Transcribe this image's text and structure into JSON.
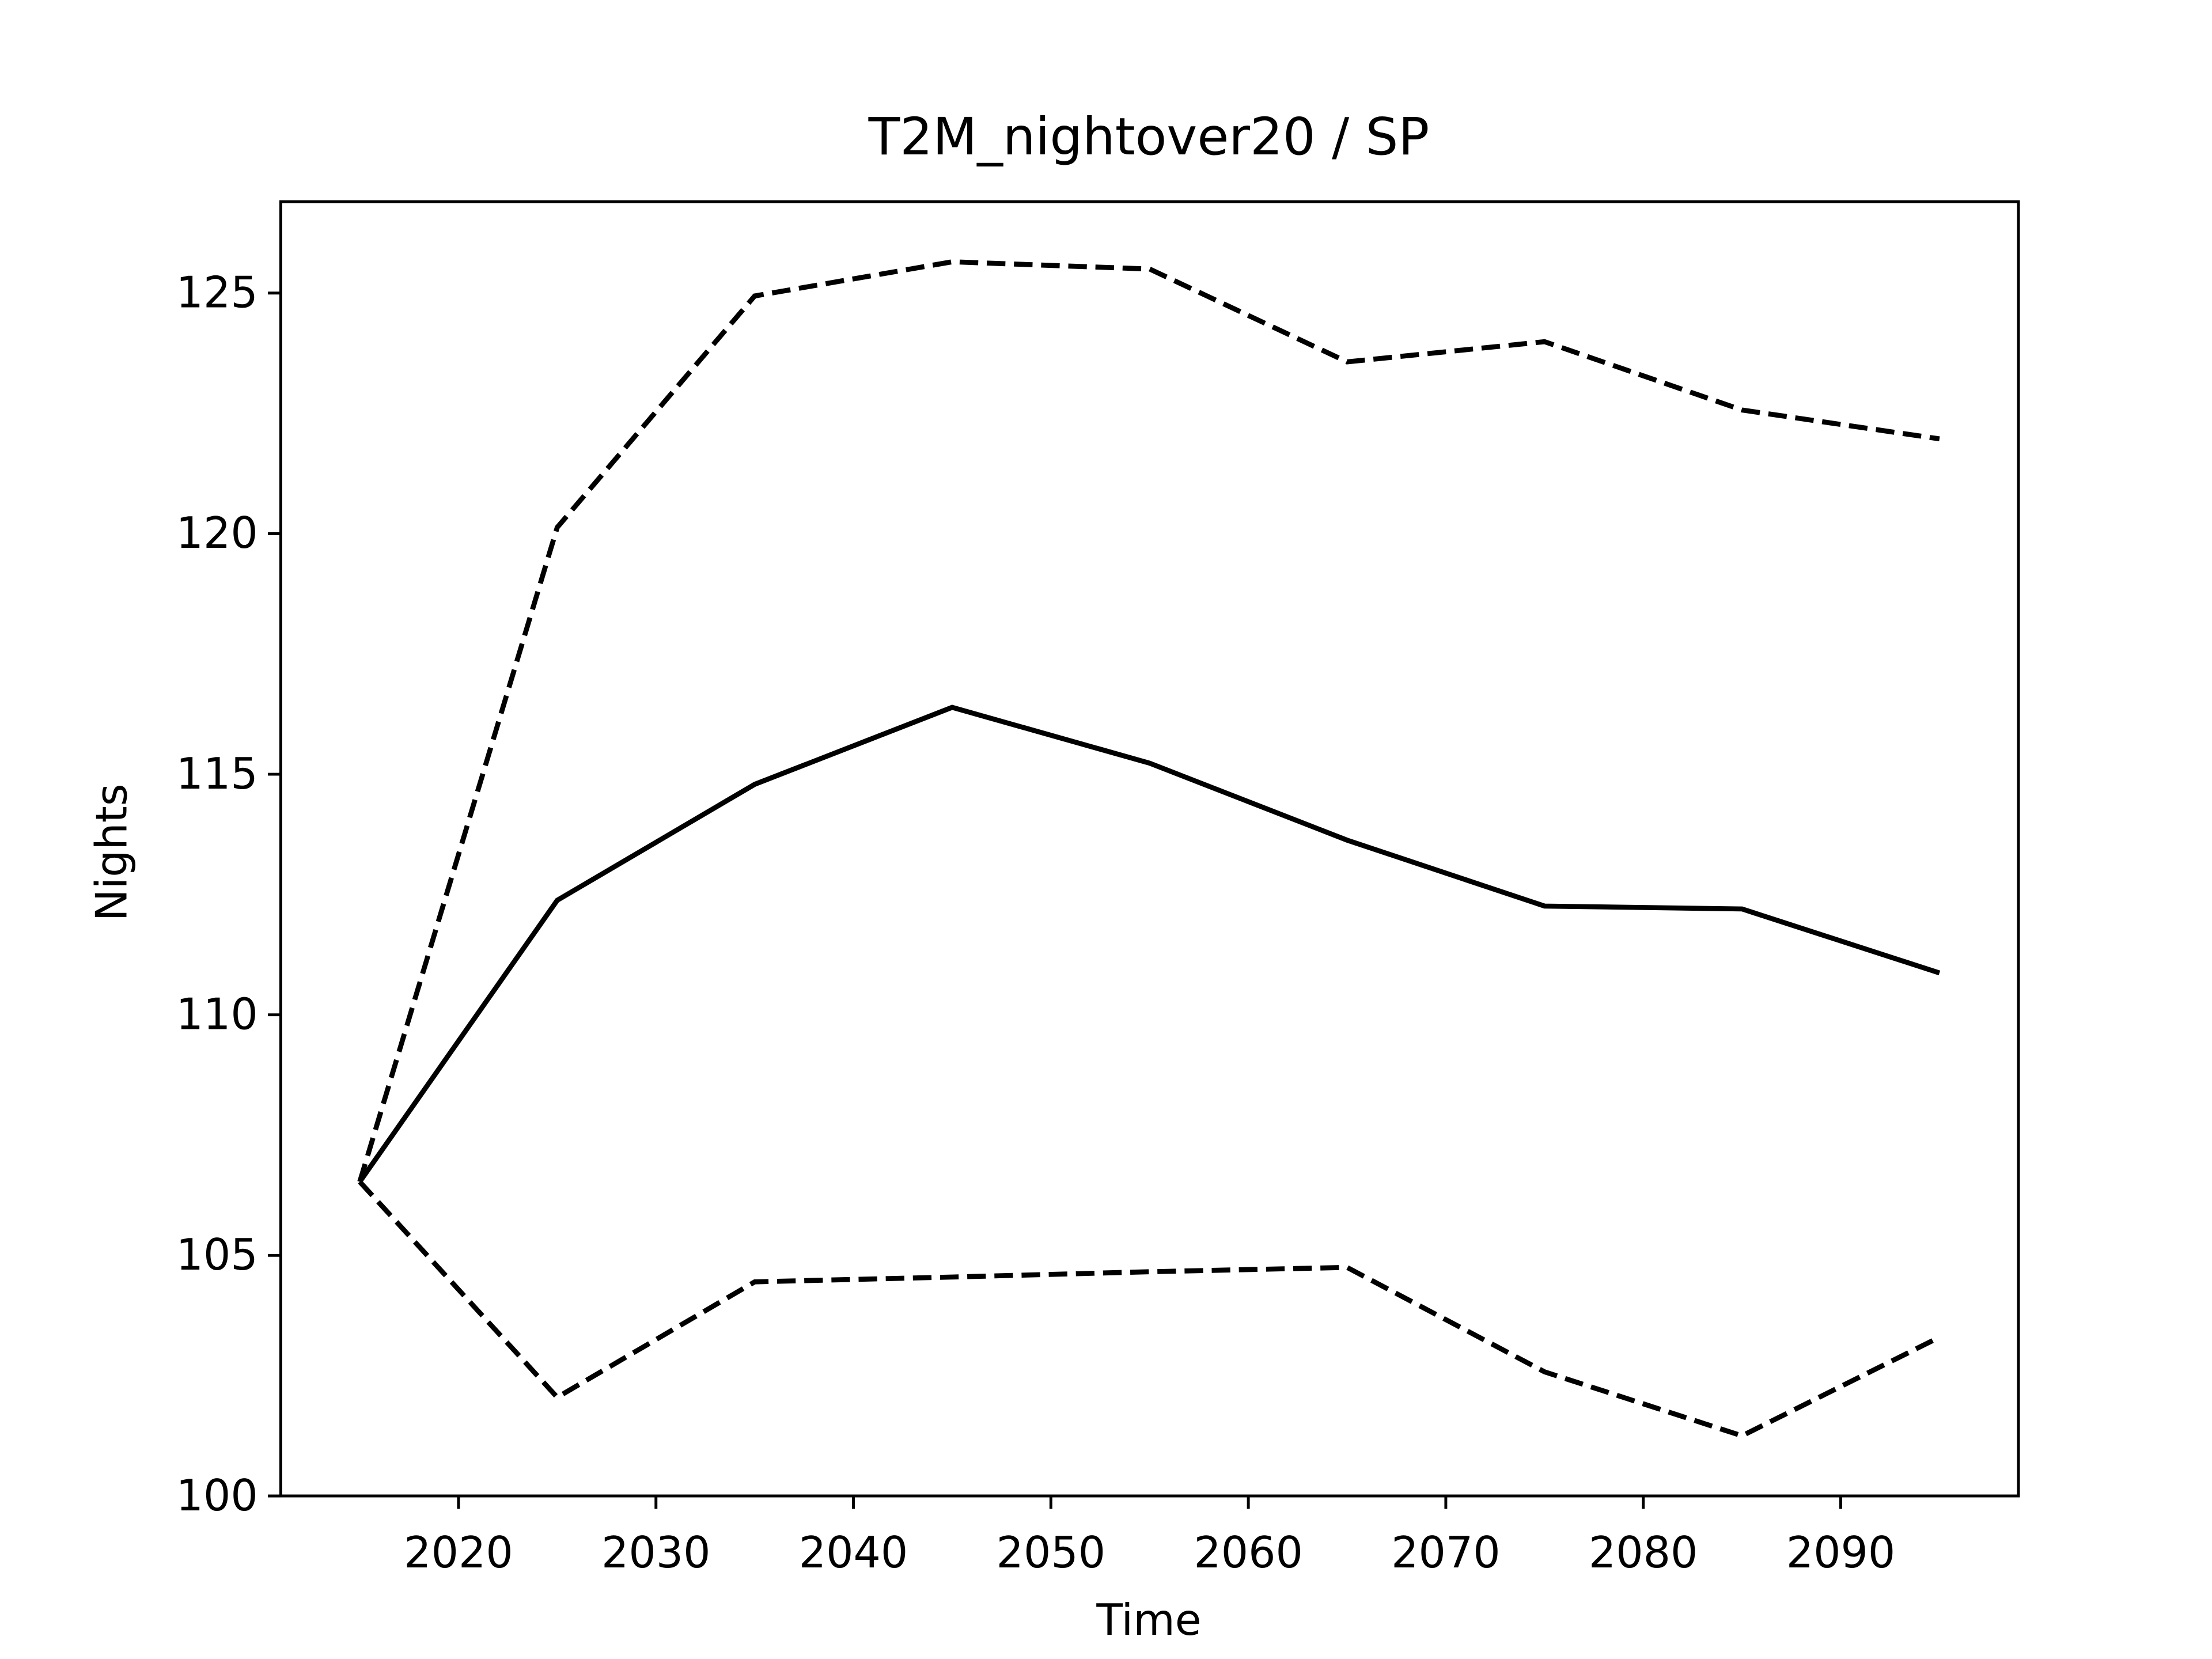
{
  "chart_data": {
    "type": "line",
    "title": "T2M_nightover20 / SP",
    "xlabel": "Time",
    "ylabel": "Nights",
    "x": [
      2015,
      2025,
      2035,
      2045,
      2055,
      2065,
      2075,
      2085,
      2095
    ],
    "series": [
      {
        "color": "#000000",
        "dash": "solid",
        "values": [
          106.53,
          112.38,
          114.79,
          116.39,
          115.23,
          113.63,
          112.26,
          112.2,
          110.87
        ]
      },
      {
        "color": "#000000",
        "dash": "dashed",
        "values": [
          106.53,
          120.13,
          124.94,
          125.65,
          125.5,
          123.57,
          123.99,
          122.57,
          121.97
        ]
      },
      {
        "color": "#000000",
        "dash": "dashed",
        "values": [
          106.53,
          102.05,
          104.45,
          104.55,
          104.66,
          104.75,
          102.58,
          101.25,
          103.3
        ]
      }
    ],
    "xlim": [
      2011,
      2099
    ],
    "xticks": [
      2020,
      2030,
      2040,
      2050,
      2060,
      2070,
      2080,
      2090
    ],
    "ylim": [
      100,
      126.9
    ],
    "yticks": [
      100,
      105,
      110,
      115,
      120,
      125
    ],
    "grid": false
  }
}
